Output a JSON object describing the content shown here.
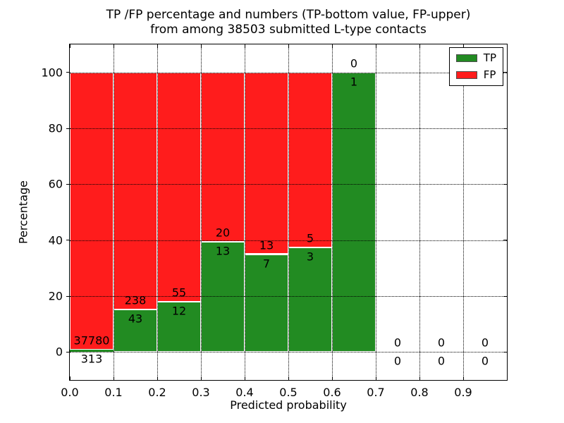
{
  "figure": {
    "title_line1": "TP /FP percentage and numbers (TP-bottom value, FP-upper)",
    "title_line2": "from among 38503 submitted L-type contacts"
  },
  "chart_data": {
    "type": "bar",
    "stacked": true,
    "normalized_to_percent": true,
    "title": "TP /FP percentage and numbers (TP-bottom value, FP-upper)\nfrom among 38503 submitted L-type contacts",
    "total_submitted_contacts": 38503,
    "xlabel": "Predicted probability",
    "ylabel": "Percentage",
    "xlim": [
      0.0,
      1.0
    ],
    "ylim": [
      -10,
      110
    ],
    "grid": {
      "style": "dotted",
      "color": "#000000"
    },
    "xticks": {
      "values": [
        0.0,
        0.1,
        0.2,
        0.3,
        0.4,
        0.5,
        0.6,
        0.7,
        0.8,
        0.9
      ],
      "labels": [
        "0.0",
        "0.1",
        "0.2",
        "0.3",
        "0.4",
        "0.5",
        "0.6",
        "0.7",
        "0.8",
        "0.9"
      ]
    },
    "yticks": {
      "values": [
        0,
        20,
        40,
        60,
        80,
        100
      ],
      "labels": [
        "0",
        "20",
        "40",
        "60",
        "80",
        "100"
      ]
    },
    "colors": {
      "tp": "#228b22",
      "fp": "#ff1c1c",
      "bar_edge": "#ffffff"
    },
    "legend": {
      "position": "upper-right",
      "entries": [
        {
          "name": "TP",
          "color": "#228b22"
        },
        {
          "name": "FP",
          "color": "#ff1c1c"
        }
      ]
    },
    "bins": [
      {
        "x0": 0.0,
        "x1": 0.1,
        "tp": 313,
        "fp": 37780
      },
      {
        "x0": 0.1,
        "x1": 0.2,
        "tp": 43,
        "fp": 238
      },
      {
        "x0": 0.2,
        "x1": 0.3,
        "tp": 12,
        "fp": 55
      },
      {
        "x0": 0.3,
        "x1": 0.4,
        "tp": 13,
        "fp": 20
      },
      {
        "x0": 0.4,
        "x1": 0.5,
        "tp": 7,
        "fp": 13
      },
      {
        "x0": 0.5,
        "x1": 0.6,
        "tp": 3,
        "fp": 5
      },
      {
        "x0": 0.6,
        "x1": 0.7,
        "tp": 1,
        "fp": 0
      },
      {
        "x0": 0.7,
        "x1": 0.8,
        "tp": 0,
        "fp": 0
      },
      {
        "x0": 0.8,
        "x1": 0.9,
        "tp": 0,
        "fp": 0
      },
      {
        "x0": 0.9,
        "x1": 1.0,
        "tp": 0,
        "fp": 0
      }
    ]
  }
}
